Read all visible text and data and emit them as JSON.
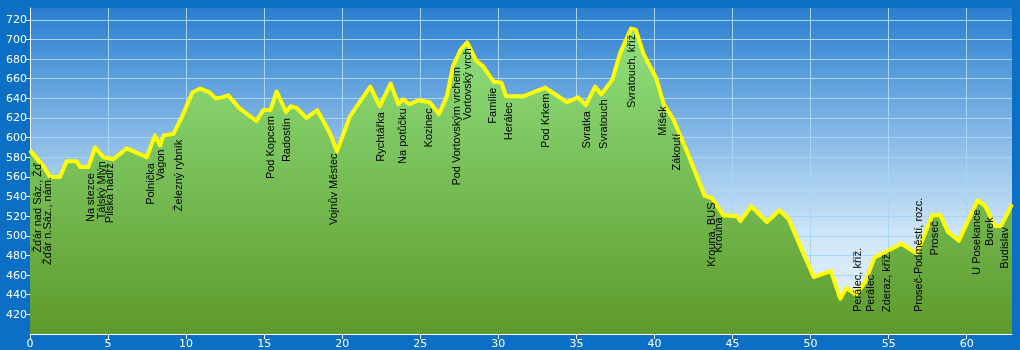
{
  "chart_data": {
    "type": "area",
    "color": "#ffff00",
    "x": [
      0,
      0.85,
      1.28,
      1.92,
      2.35,
      2.99,
      3.2,
      3.74,
      4.17,
      4.7,
      5.34,
      6.2,
      7.48,
      8.0,
      8.33,
      8.55,
      9.2,
      9.7,
      10.4,
      10.9,
      11.5,
      11.9,
      12.3,
      12.7,
      13.4,
      14.5,
      14.95,
      15.4,
      15.8,
      16.4,
      16.7,
      17.1,
      17.7,
      18.4,
      19.2,
      19.66,
      20.5,
      21.8,
      22.4,
      23.1,
      23.6,
      23.9,
      24.3,
      24.9,
      25.6,
      26.2,
      26.7,
      27.1,
      27.6,
      28.0,
      28.6,
      29.0,
      29.7,
      30.2,
      30.5,
      31.6,
      33.0,
      34.4,
      35.1,
      35.6,
      36.2,
      36.6,
      37.3,
      37.8,
      38.5,
      38.8,
      39.3,
      40.1,
      40.6,
      41.2,
      42.1,
      43.2,
      43.7,
      44.4,
      45.3,
      45.5,
      46.2,
      47.2,
      48.0,
      48.6,
      49.4,
      50.2,
      51.3,
      51.9,
      52.3,
      52.9,
      53.5,
      54.1,
      55.0,
      55.8,
      56.8,
      57.8,
      58.3,
      58.8,
      59.5,
      60.7,
      61.2,
      61.8,
      62.2,
      62.9
    ],
    "values": [
      587,
      571,
      560,
      560,
      576,
      576,
      570,
      570,
      590,
      580,
      578,
      589,
      580,
      602,
      592,
      602,
      604,
      620,
      646,
      650,
      646,
      640,
      641,
      643,
      630,
      617,
      628,
      628,
      647,
      626,
      632,
      630,
      620,
      628,
      605,
      586,
      622,
      652,
      632,
      655,
      634,
      639,
      634,
      638,
      636,
      624,
      642,
      673,
      690,
      697,
      678,
      673,
      657,
      656,
      642,
      642,
      651,
      636,
      641,
      633,
      652,
      644,
      659,
      686,
      711,
      710,
      685,
      661,
      634,
      619,
      585,
      541,
      538,
      521,
      520,
      515,
      530,
      514,
      526,
      517,
      487,
      458,
      464,
      436,
      447,
      440,
      453,
      478,
      485,
      492,
      482,
      521,
      521,
      504,
      495,
      536,
      530,
      510,
      510,
      532
    ],
    "xlim": [
      0,
      62.9
    ],
    "xticks": [
      0,
      5,
      10,
      15,
      20,
      25,
      30,
      35,
      40,
      45,
      50,
      55,
      60
    ],
    "ylim": [
      400,
      732
    ],
    "yticks": [
      420,
      440,
      460,
      480,
      500,
      520,
      540,
      560,
      580,
      600,
      620,
      640,
      660,
      680,
      700,
      720
    ],
    "grid": true,
    "marker": "none",
    "annotations": [
      {
        "text": "Žďár nad Sáz., Žď",
        "x": 0.45,
        "y": 580
      },
      {
        "text": "Žďár n.Sáz., nám.",
        "x": 1.1,
        "y": 566
      },
      {
        "text": "Na stezce",
        "x": 3.85,
        "y": 570
      },
      {
        "text": "Tálský Mlýn",
        "x": 4.55,
        "y": 582
      },
      {
        "text": "Pilská nádrž",
        "x": 5.05,
        "y": 580
      },
      {
        "text": "Polnička",
        "x": 7.7,
        "y": 580
      },
      {
        "text": "Vagon",
        "x": 8.3,
        "y": 594
      },
      {
        "text": "Železný rybník",
        "x": 9.5,
        "y": 604
      },
      {
        "text": "Pod Kopcem",
        "x": 15.4,
        "y": 628
      },
      {
        "text": "Radostín",
        "x": 16.4,
        "y": 626
      },
      {
        "text": "Vojnův Městec",
        "x": 19.4,
        "y": 590
      },
      {
        "text": "Rychtářka",
        "x": 22.4,
        "y": 632
      },
      {
        "text": "Na potůčku",
        "x": 23.8,
        "y": 636
      },
      {
        "text": "Kozinec",
        "x": 25.5,
        "y": 636
      },
      {
        "text": "Pod Vortovským vrchem",
        "x": 27.3,
        "y": 678
      },
      {
        "text": "Vortovský vrch",
        "x": 28.0,
        "y": 697
      },
      {
        "text": "Famílie",
        "x": 29.6,
        "y": 657
      },
      {
        "text": "Herálec",
        "x": 30.6,
        "y": 642
      },
      {
        "text": "Pod Krkem",
        "x": 33.0,
        "y": 651
      },
      {
        "text": "Svratka",
        "x": 35.6,
        "y": 633
      },
      {
        "text": "Svratouch",
        "x": 36.7,
        "y": 645
      },
      {
        "text": "Svratouch, kříž",
        "x": 38.5,
        "y": 711
      },
      {
        "text": "Míšek",
        "x": 40.5,
        "y": 638
      },
      {
        "text": "Zákoutí",
        "x": 41.4,
        "y": 610
      },
      {
        "text": "Krouna, BUS",
        "x": 43.6,
        "y": 540
      },
      {
        "text": "Krouna",
        "x": 44.1,
        "y": 525
      },
      {
        "text": "Perálec, kříž.",
        "x": 53.0,
        "y": 440
      },
      {
        "text": "Perálec",
        "x": 53.8,
        "y": 465
      },
      {
        "text": "Zderaz, kříž.",
        "x": 54.8,
        "y": 483
      },
      {
        "text": "Proseč-Podměstí, rozc.",
        "x": 56.9,
        "y": 484
      },
      {
        "text": "Proseč",
        "x": 57.9,
        "y": 521
      },
      {
        "text": "U Posekance",
        "x": 60.6,
        "y": 533
      },
      {
        "text": "Borek",
        "x": 61.4,
        "y": 525
      },
      {
        "text": "Budislav",
        "x": 62.4,
        "y": 515
      }
    ]
  }
}
